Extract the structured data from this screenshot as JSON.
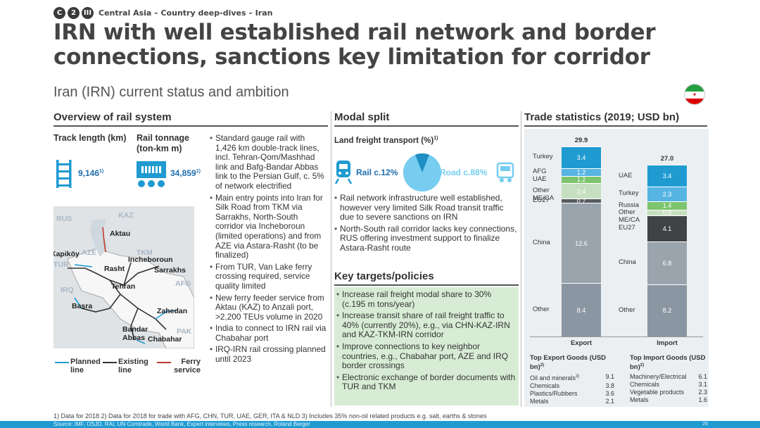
{
  "breadcrumb": {
    "badges": [
      "C",
      "2",
      "III"
    ],
    "text": "Central Asia – Country deep-dives – Iran"
  },
  "title": "IRN with well established rail network and border connections, sanctions key limitation for corridor",
  "subtitle": "Iran (IRN) current status and ambition",
  "flag_colors": [
    "#239f40",
    "#ffffff",
    "#da0000"
  ],
  "overview": {
    "heading": "Overview of rail system",
    "track": {
      "label": "Track length (km)",
      "value": "9,146",
      "sup": "1)"
    },
    "tonnage": {
      "label": "Rail tonnage (ton-km m)",
      "value": "34,859",
      "sup": "1)"
    },
    "bullets": [
      "Standard gauge rail with 1,426 km double-track lines, incl. Tehran-Qom/Mashhad link and Bafg-Bandar Abbas link to the Persian Gulf, c. 5% of network electrified",
      "Main entry points into Iran for Silk Road from TKM via Sarrakhs, North-South corridor via Incheboroun (limited operations) and from AZE via Astara-Rasht (to be finalized)",
      "From TUR, Van Lake ferry crossing required, service quality limited",
      "New ferry feeder service from Aktau (KAZ) to Anzali port, >2,200 TEUs volume in 2020",
      "India to connect to IRN rail via Chabahar port",
      "IRQ-IRN rail crossing planned until 2023"
    ],
    "map": {
      "countries": [
        "RUS",
        "KAZ",
        "AZE",
        "TKM",
        "TUR",
        "IRQ",
        "AFG",
        "PAK"
      ],
      "cities": [
        "Aktau",
        "Kapiköy",
        "Incheboroun",
        "Rasht",
        "Sarrakhs",
        "Tehran",
        "Basra",
        "Zahedan",
        "Bandar Abbas",
        "Chabahar"
      ]
    },
    "legend": {
      "planned": "Planned line",
      "existing": "Existing line",
      "ferry": "Ferry service"
    }
  },
  "modal": {
    "heading": "Modal split",
    "sub": "Land freight transport (%)",
    "sub_sup": "1)",
    "rail_label": "Rail c.12%",
    "road_label": "Road c.88%",
    "rail_share": 12,
    "bullets": [
      "Rail network infrastructure well established, however very limited Silk Road transit traffic due to severe sanctions on IRN",
      "North-South rail corridor lacks key connections, RUS offering investment support to finalize Astara-Rasht route"
    ]
  },
  "targets": {
    "heading": "Key targets/policies",
    "bullets": [
      "Increase rail freight modal share to 30% (c.195 m tons/year)",
      "Increase transit share of rail freight traffic to 40% (currently 20%), e.g., via CHN-KAZ-IRN and KAZ-TKM-IRN corridor",
      "Improve connections to key neighbor countries, e.g., Chabahar port, AZE and IRQ border crossings",
      "Electronic exchange of border documents with TUR and TKM"
    ]
  },
  "trade": {
    "heading": "Trade statistics (2019; USD bn)",
    "export": {
      "label": "Export",
      "total": "29.9",
      "segments": [
        {
          "name": "Other",
          "value": "8.4",
          "num": 8.4,
          "color": "#8a96a2"
        },
        {
          "name": "China",
          "value": "12.6",
          "num": 12.6,
          "color": "#9aa4ad"
        },
        {
          "name": "EU27",
          "value": "0.7",
          "num": 0.7,
          "color": "#555b60"
        },
        {
          "name": "Other ME/CA",
          "value": "2.4",
          "num": 2.4,
          "color": "#c6dfc0"
        },
        {
          "name": "UAE",
          "value": "1.2",
          "num": 1.2,
          "color": "#7cc46e"
        },
        {
          "name": "AFG",
          "value": "1.2",
          "num": 1.2,
          "color": "#57b5e3"
        },
        {
          "name": "Turkey",
          "value": "3.4",
          "num": 3.4,
          "color": "#1f9bd1"
        }
      ]
    },
    "import": {
      "label": "Import",
      "total": "27.0",
      "segments": [
        {
          "name": "Other",
          "value": "8.2",
          "num": 8.2,
          "color": "#8a96a2"
        },
        {
          "name": "China",
          "value": "6.8",
          "num": 6.8,
          "color": "#9aa4ad"
        },
        {
          "name": "EU27",
          "value": "4.1",
          "num": 4.1,
          "color": "#3f4346"
        },
        {
          "name": "Other ME/CA",
          "value": "0.8",
          "num": 0.8,
          "color": "#c6dfc0"
        },
        {
          "name": "Russia",
          "value": "1.4",
          "num": 1.4,
          "color": "#7cc46e"
        },
        {
          "name": "Turkey",
          "value": "2.3",
          "num": 2.3,
          "color": "#57b5e3"
        },
        {
          "name": "UAE",
          "value": "3.4",
          "num": 3.4,
          "color": "#1f9bd1"
        }
      ]
    },
    "top_export": {
      "title": "Top Export Goods (USD bn)",
      "sup": "2)",
      "rows": [
        {
          "name": "Oil and minerals",
          "sup": "3)",
          "value": "9.1"
        },
        {
          "name": "Chemicals",
          "sup": "",
          "value": "3.8"
        },
        {
          "name": "Plastics/Rubbers",
          "sup": "",
          "value": "3.6"
        },
        {
          "name": "Metals",
          "sup": "",
          "value": "2.1"
        }
      ]
    },
    "top_import": {
      "title": "Top Import Goods (USD bn)",
      "sup": "2)",
      "rows": [
        {
          "name": "Machinery/Electrical",
          "sup": "",
          "value": "6.1"
        },
        {
          "name": "Chemicals",
          "sup": "",
          "value": "3.1"
        },
        {
          "name": "Vegetable products",
          "sup": "",
          "value": "2.3"
        },
        {
          "name": "Metals",
          "sup": "",
          "value": "1.6"
        }
      ]
    }
  },
  "footnote": "1) Data for 2018    2) Data for 2018 for trade with AFG, CHN, TUR, UAE, GER, ITA & NLD    3) Includes 35% non-oil related products e.g. salt, earths & stones",
  "source": "Source: IMF, OSJD, RAI, UN Comtrade, World Bank, Expert interviews, Press research, Roland Berger",
  "page": "26"
}
